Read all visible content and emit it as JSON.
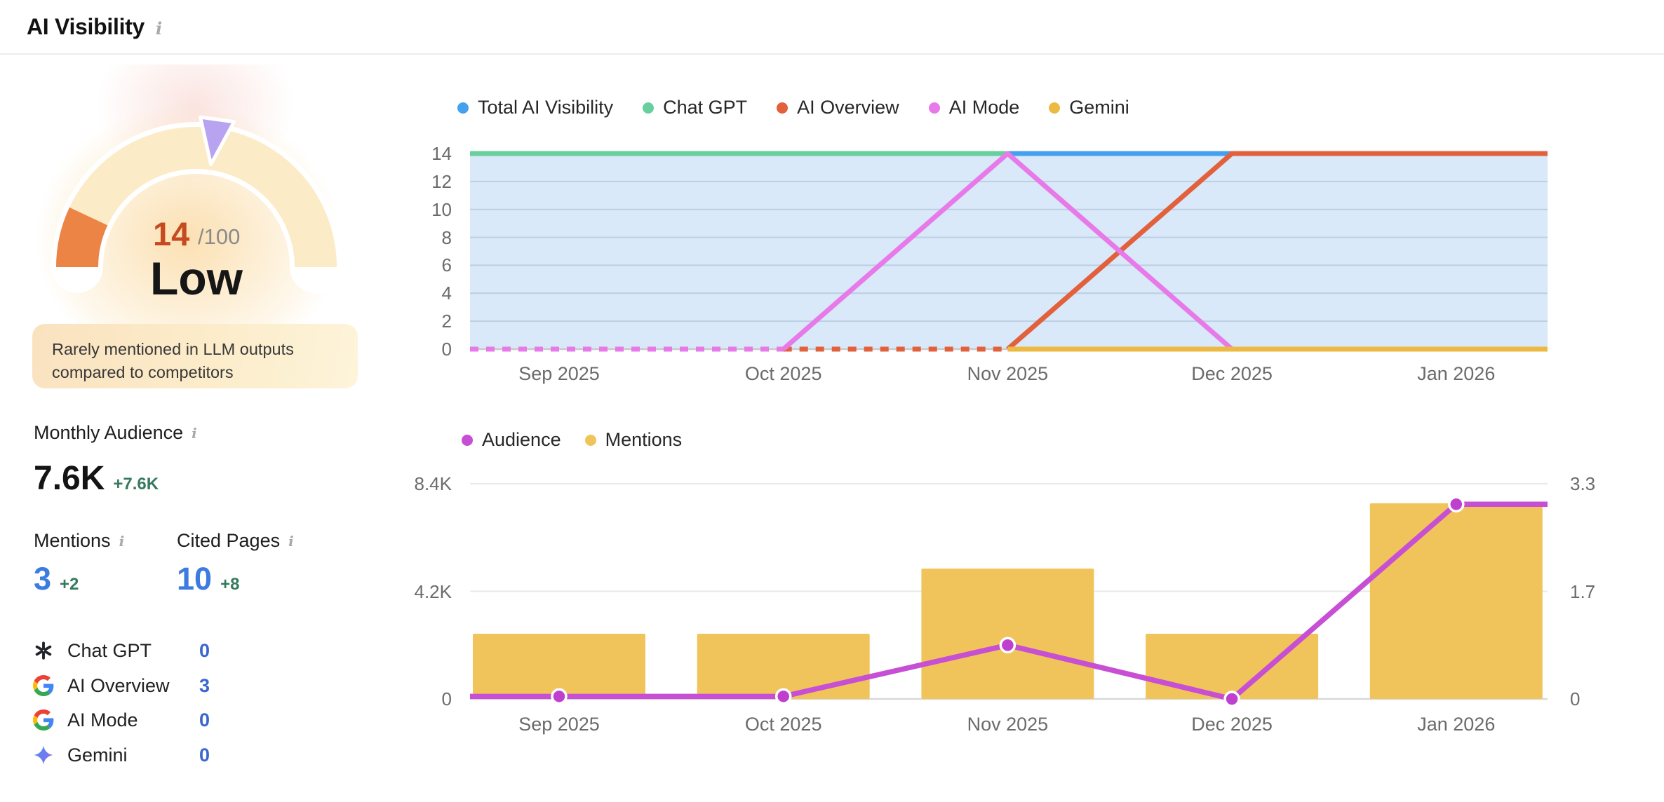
{
  "header": {
    "title": "AI Visibility"
  },
  "icons": {
    "info_glyph": "i"
  },
  "score_panel": {
    "score": "14",
    "score_max": "/100",
    "score_label": "Low",
    "description": "Rarely mentioned in LLM outputs compared to competitors",
    "gauge": {
      "value": 14,
      "max": 100,
      "track_color": "#fcebc7",
      "fill_color": "#eb8445",
      "marker_color": "#b7a3f0",
      "score_color": "#c64a1f",
      "score_den_color": "#8b8b8b",
      "label_color": "#161616"
    }
  },
  "metrics": {
    "monthly_audience": {
      "label": "Monthly Audience",
      "value": "7.6K",
      "delta": "+7.6K"
    },
    "mentions": {
      "label": "Mentions",
      "value": "3",
      "delta": "+2"
    },
    "cited_pages": {
      "label": "Cited Pages",
      "value": "10",
      "delta": "+8"
    },
    "value_blue": "#3c7be0",
    "delta_green": "#35795e"
  },
  "platforms": {
    "value_color": "#3b66cf",
    "rows": [
      {
        "icon": "openai-logo",
        "label": "Chat GPT",
        "value": "0"
      },
      {
        "icon": "google-g",
        "label": "AI Overview",
        "value": "3"
      },
      {
        "icon": "google-g",
        "label": "AI Mode",
        "value": "0"
      },
      {
        "icon": "gemini-star",
        "label": "Gemini",
        "value": "0"
      }
    ]
  },
  "chart_data": [
    {
      "type": "line",
      "name": "ai-visibility-by-platform",
      "legend_position": "top",
      "grid": true,
      "x_categories": [
        "Sep 2025",
        "Oct 2025",
        "Nov 2025",
        "Dec 2025",
        "Jan 2026"
      ],
      "x_edges": [
        -0.4,
        4.41
      ],
      "ylim": [
        0,
        14
      ],
      "yticks": [
        0,
        2,
        4,
        6,
        8,
        10,
        12,
        14
      ],
      "series": [
        {
          "name": "Total AI Visibility",
          "color": "#45a1ef",
          "area_fill": "#d9e9f9",
          "values": [
            14,
            14,
            14,
            14,
            14
          ],
          "segments": [
            {
              "dash": false,
              "points": [
                [
                  -0.4,
                  14
                ],
                [
                  4.41,
                  14
                ]
              ]
            }
          ]
        },
        {
          "name": "Chat GPT",
          "color": "#68cf9d",
          "values": [
            14,
            14,
            14,
            null,
            null
          ],
          "segments": [
            {
              "dash": false,
              "points": [
                [
                  -0.4,
                  14
                ],
                [
                  2,
                  14
                ]
              ]
            }
          ]
        },
        {
          "name": "AI Overview",
          "color": "#e2603c",
          "values": [
            null,
            0,
            0,
            14,
            14
          ],
          "segments": [
            {
              "dash": true,
              "points": [
                [
                  1,
                  0
                ],
                [
                  2,
                  0
                ]
              ]
            },
            {
              "dash": false,
              "points": [
                [
                  2,
                  0
                ],
                [
                  3,
                  14
                ],
                [
                  4.41,
                  14
                ]
              ]
            }
          ]
        },
        {
          "name": "AI Mode",
          "color": "#e77ae8",
          "values": [
            0,
            0,
            14,
            0,
            0
          ],
          "segments": [
            {
              "dash": true,
              "points": [
                [
                  -0.4,
                  0
                ],
                [
                  1,
                  0
                ]
              ]
            },
            {
              "dash": false,
              "points": [
                [
                  1,
                  0
                ],
                [
                  2,
                  14
                ],
                [
                  3,
                  0
                ]
              ]
            }
          ]
        },
        {
          "name": "Gemini",
          "color": "#ecba43",
          "values": [
            null,
            null,
            0,
            0,
            0
          ],
          "segments": [
            {
              "dash": false,
              "points": [
                [
                  2,
                  0
                ],
                [
                  4.41,
                  0
                ]
              ]
            }
          ]
        }
      ]
    },
    {
      "type": "bar+line",
      "name": "audience-and-mentions",
      "legend_position": "top",
      "x_categories": [
        "Sep 2025",
        "Oct 2025",
        "Nov 2025",
        "Dec 2025",
        "Jan 2026"
      ],
      "x_edges": [
        -0.4,
        4.41
      ],
      "left_axis": {
        "series": "Audience",
        "ticks": [
          "0",
          "4.2K",
          "8.4K"
        ],
        "max": 8400
      },
      "right_axis": {
        "series": "Mentions",
        "ticks": [
          "0",
          "1.7",
          "3.3"
        ],
        "max": 3.3
      },
      "series": [
        {
          "name": "Audience",
          "type": "line",
          "axis": "left",
          "color": "#c74fd4",
          "point_color": "#bf3fcf",
          "values": [
            100,
            100,
            2100,
            0,
            7600
          ]
        },
        {
          "name": "Mentions",
          "type": "bar",
          "axis": "right",
          "color": "#f1c45b",
          "values": [
            1,
            1,
            2,
            1,
            3
          ]
        }
      ]
    }
  ]
}
